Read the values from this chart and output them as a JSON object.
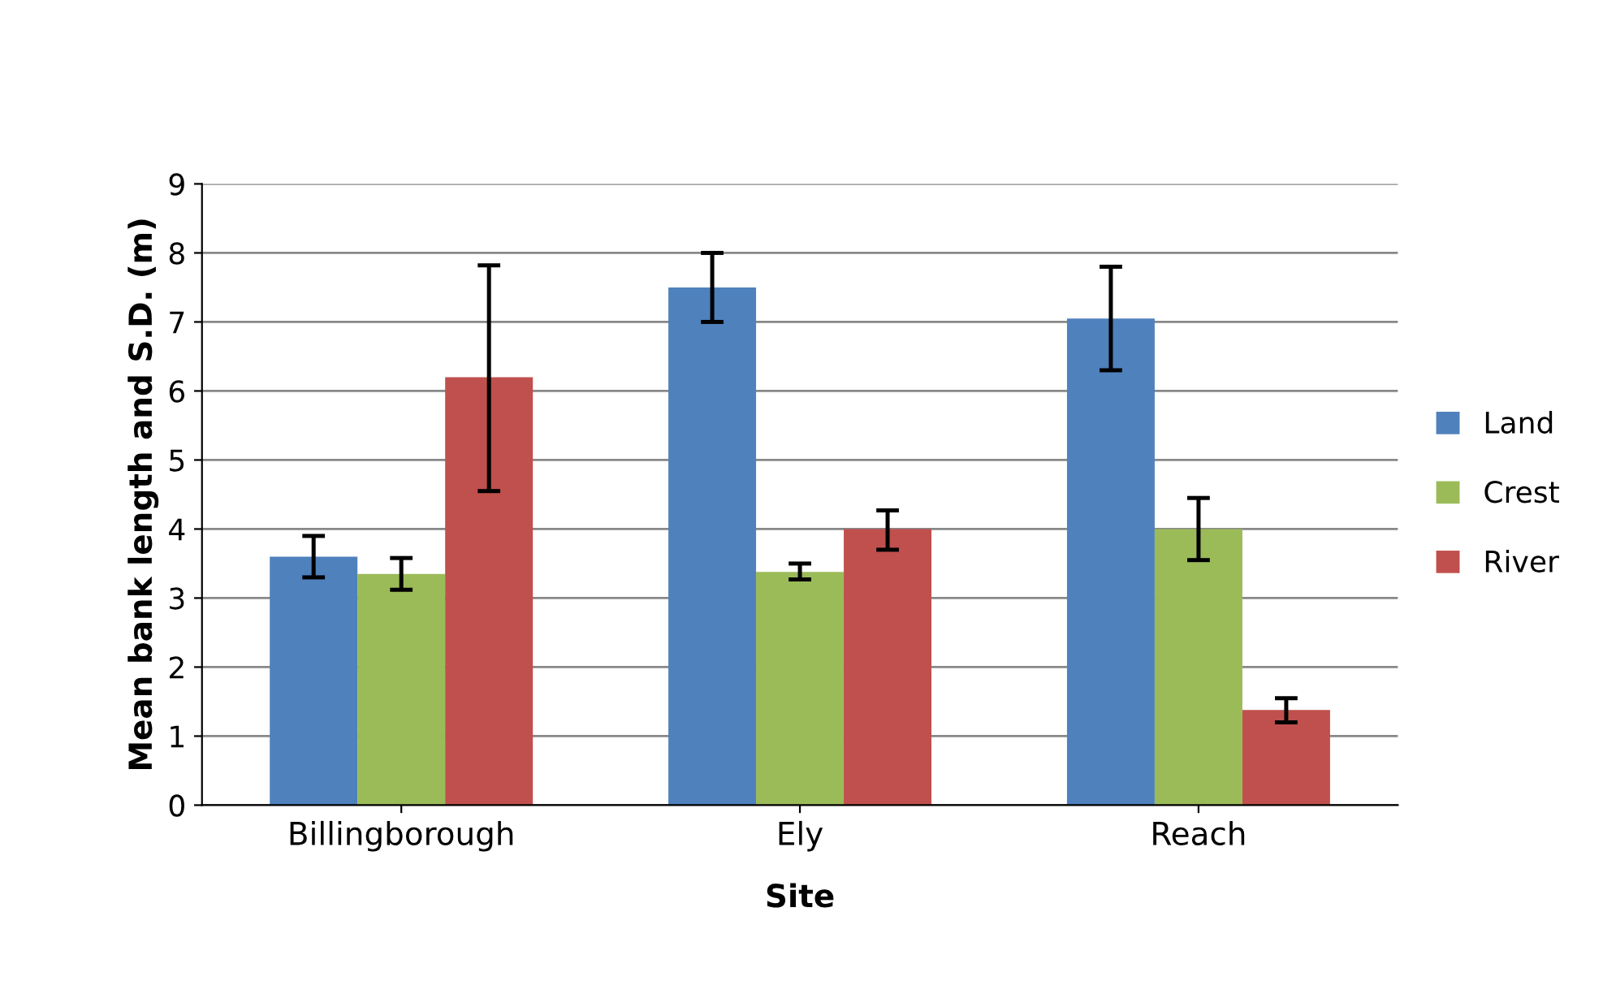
{
  "chart_data": {
    "type": "bar",
    "xlabel": "Site",
    "ylabel": "Mean bank length and S.D. (m)",
    "categories": [
      "Billingborough",
      "Ely",
      "Reach"
    ],
    "series": [
      {
        "name": "Land",
        "color": "#4f81bd",
        "values": [
          3.6,
          7.5,
          7.05
        ],
        "errors": [
          [
            3.3,
            3.9
          ],
          [
            7.0,
            8.0
          ],
          [
            6.3,
            7.8
          ]
        ]
      },
      {
        "name": "Crest",
        "color": "#9bbb59",
        "values": [
          3.35,
          3.38,
          4.0
        ],
        "errors": [
          [
            3.12,
            3.58
          ],
          [
            3.27,
            3.5
          ],
          [
            3.55,
            4.45
          ]
        ]
      },
      {
        "name": "River",
        "color": "#c0504d",
        "values": [
          6.2,
          4.0,
          1.38
        ],
        "errors": [
          [
            4.55,
            7.82
          ],
          [
            3.7,
            4.27
          ],
          [
            1.2,
            1.55
          ]
        ]
      }
    ],
    "ylim": [
      0,
      9
    ],
    "yticks": [
      0,
      1,
      2,
      3,
      4,
      5,
      6,
      7,
      8,
      9
    ],
    "grid": "y",
    "legend": "right"
  }
}
